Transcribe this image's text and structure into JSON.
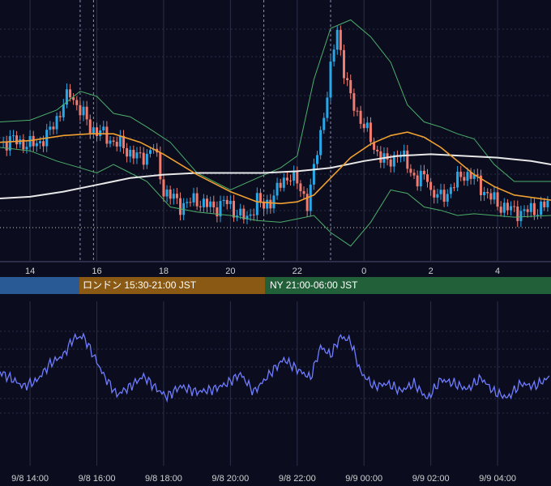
{
  "colors": {
    "background": "#0b0d1f",
    "candle_up": "#29a8e8",
    "candle_down": "#f07b6e",
    "bollinger": "#4caf6a",
    "ma_short": "#f0a030",
    "ma_long": "#e8e8e8",
    "oscillator": "#6f7cff",
    "grid": "#2a2f48",
    "axis_text": "#d0d0d0"
  },
  "sessions": {
    "tokyo": {
      "label": "",
      "color": "#2a5a96"
    },
    "london": {
      "label": "ロンドン 15:30-21:00 JST",
      "color": "#8a5a14"
    },
    "ny": {
      "label": "NY 21:00-06:00 JST",
      "color": "#22603a"
    }
  },
  "chart_data": [
    {
      "type": "candlestick",
      "title": "",
      "x_tick_labels": [
        "14",
        "16",
        "18",
        "20",
        "22",
        "0",
        "2",
        "4"
      ],
      "y_tick_labels": [],
      "grid": true,
      "overlays": [
        "bollinger_bands",
        "moving_average_short",
        "moving_average_long"
      ],
      "price_path": [
        [
          13.1,
          0.33
        ],
        [
          13.6,
          0.34
        ],
        [
          14.0,
          0.31
        ],
        [
          14.5,
          0.36
        ],
        [
          15.0,
          0.55
        ],
        [
          15.2,
          0.62
        ],
        [
          15.5,
          0.52
        ],
        [
          15.8,
          0.42
        ],
        [
          16.3,
          0.36
        ],
        [
          16.8,
          0.3
        ],
        [
          17.3,
          0.23
        ],
        [
          17.7,
          0.3
        ],
        [
          18.0,
          0.05
        ],
        [
          18.5,
          -0.04
        ],
        [
          19.0,
          -0.01
        ],
        [
          19.5,
          -0.06
        ],
        [
          19.8,
          -0.02
        ],
        [
          20.2,
          -0.08
        ],
        [
          20.5,
          -0.13
        ],
        [
          20.8,
          0.0
        ],
        [
          21.0,
          -0.06
        ],
        [
          21.4,
          0.05
        ],
        [
          21.8,
          0.15
        ],
        [
          22.0,
          0.08
        ],
        [
          22.3,
          -0.02
        ],
        [
          22.5,
          0.16
        ],
        [
          22.8,
          0.5
        ],
        [
          23.0,
          0.75
        ],
        [
          23.2,
          1.0
        ],
        [
          23.35,
          0.8
        ],
        [
          23.6,
          0.58
        ],
        [
          24.0,
          0.43
        ],
        [
          24.3,
          0.3
        ],
        [
          24.7,
          0.2
        ],
        [
          25.0,
          0.27
        ],
        [
          25.3,
          0.2
        ],
        [
          25.6,
          0.1
        ],
        [
          25.9,
          0.14
        ],
        [
          26.0,
          0.04
        ],
        [
          26.3,
          0.0
        ],
        [
          26.6,
          0.06
        ],
        [
          27.0,
          0.15
        ],
        [
          27.3,
          0.12
        ],
        [
          27.7,
          0.02
        ],
        [
          28.0,
          -0.03
        ],
        [
          28.4,
          -0.07
        ],
        [
          28.8,
          -0.08
        ],
        [
          29.2,
          -0.06
        ],
        [
          29.6,
          -0.03
        ]
      ],
      "bollinger_upper": [
        [
          13.1,
          0.45
        ],
        [
          14.0,
          0.46
        ],
        [
          14.8,
          0.52
        ],
        [
          15.5,
          0.63
        ],
        [
          16.0,
          0.6
        ],
        [
          16.5,
          0.5
        ],
        [
          17.0,
          0.48
        ],
        [
          17.5,
          0.42
        ],
        [
          18.2,
          0.33
        ],
        [
          19.0,
          0.15
        ],
        [
          20.0,
          0.05
        ],
        [
          20.8,
          0.12
        ],
        [
          21.5,
          0.18
        ],
        [
          22.0,
          0.25
        ],
        [
          22.5,
          0.7
        ],
        [
          23.0,
          1.0
        ],
        [
          23.6,
          1.05
        ],
        [
          24.2,
          0.95
        ],
        [
          24.8,
          0.8
        ],
        [
          25.3,
          0.55
        ],
        [
          25.8,
          0.45
        ],
        [
          26.3,
          0.42
        ],
        [
          26.8,
          0.38
        ],
        [
          27.3,
          0.35
        ],
        [
          27.9,
          0.2
        ],
        [
          28.5,
          0.1
        ],
        [
          29.6,
          0.1
        ]
      ],
      "bollinger_lower": [
        [
          13.1,
          0.3
        ],
        [
          14.0,
          0.28
        ],
        [
          14.8,
          0.22
        ],
        [
          15.5,
          0.18
        ],
        [
          16.0,
          0.15
        ],
        [
          16.5,
          0.2
        ],
        [
          17.0,
          0.15
        ],
        [
          17.5,
          0.1
        ],
        [
          18.2,
          -0.05
        ],
        [
          19.0,
          -0.08
        ],
        [
          20.0,
          -0.1
        ],
        [
          20.8,
          -0.13
        ],
        [
          21.5,
          -0.14
        ],
        [
          22.0,
          -0.12
        ],
        [
          22.5,
          -0.1
        ],
        [
          23.0,
          -0.2
        ],
        [
          23.6,
          -0.28
        ],
        [
          24.2,
          -0.14
        ],
        [
          24.8,
          0.05
        ],
        [
          25.3,
          0.03
        ],
        [
          25.8,
          -0.05
        ],
        [
          26.3,
          -0.07
        ],
        [
          26.8,
          -0.1
        ],
        [
          27.3,
          -0.09
        ],
        [
          27.9,
          -0.1
        ],
        [
          28.5,
          -0.11
        ],
        [
          29.6,
          -0.1
        ]
      ],
      "ma_short": [
        [
          13.1,
          0.33
        ],
        [
          14.0,
          0.34
        ],
        [
          15.0,
          0.37
        ],
        [
          15.8,
          0.38
        ],
        [
          16.5,
          0.38
        ],
        [
          17.3,
          0.33
        ],
        [
          18.0,
          0.26
        ],
        [
          19.0,
          0.14
        ],
        [
          20.0,
          0.04
        ],
        [
          20.8,
          -0.02
        ],
        [
          21.5,
          -0.03
        ],
        [
          22.0,
          -0.02
        ],
        [
          22.5,
          0.02
        ],
        [
          23.0,
          0.12
        ],
        [
          23.6,
          0.24
        ],
        [
          24.2,
          0.32
        ],
        [
          24.8,
          0.37
        ],
        [
          25.3,
          0.39
        ],
        [
          25.8,
          0.36
        ],
        [
          26.3,
          0.3
        ],
        [
          26.8,
          0.22
        ],
        [
          27.3,
          0.14
        ],
        [
          27.9,
          0.07
        ],
        [
          28.5,
          0.02
        ],
        [
          29.6,
          -0.01
        ]
      ],
      "ma_long": [
        [
          13.1,
          0.0
        ],
        [
          14.0,
          0.01
        ],
        [
          15.0,
          0.04
        ],
        [
          16.0,
          0.08
        ],
        [
          17.0,
          0.12
        ],
        [
          18.0,
          0.14
        ],
        [
          19.0,
          0.15
        ],
        [
          20.0,
          0.15
        ],
        [
          21.0,
          0.15
        ],
        [
          22.0,
          0.16
        ],
        [
          23.0,
          0.18
        ],
        [
          24.0,
          0.22
        ],
        [
          25.0,
          0.25
        ],
        [
          26.0,
          0.26
        ],
        [
          27.0,
          0.25
        ],
        [
          28.0,
          0.24
        ],
        [
          29.0,
          0.22
        ],
        [
          29.6,
          0.2
        ]
      ]
    },
    {
      "type": "line",
      "title": "",
      "x_tick_labels": [
        "9/8 14:00",
        "9/8 16:00",
        "9/8 18:00",
        "9/8 20:00",
        "9/8 22:00",
        "9/9 00:00",
        "9/9 02:00",
        "9/9 04:00"
      ],
      "y_tick_labels": [],
      "grid": true,
      "series": [
        {
          "name": "",
          "points": [
            [
              13.1,
              0.15
            ],
            [
              13.4,
              0.05
            ],
            [
              13.8,
              -0.1
            ],
            [
              14.2,
              0.0
            ],
            [
              14.6,
              0.3
            ],
            [
              15.0,
              0.45
            ],
            [
              15.3,
              0.75
            ],
            [
              15.6,
              0.78
            ],
            [
              15.9,
              0.45
            ],
            [
              16.2,
              0.1
            ],
            [
              16.6,
              -0.25
            ],
            [
              17.0,
              -0.1
            ],
            [
              17.4,
              0.08
            ],
            [
              17.8,
              -0.15
            ],
            [
              18.1,
              -0.28
            ],
            [
              18.5,
              -0.1
            ],
            [
              19.0,
              -0.2
            ],
            [
              19.5,
              -0.15
            ],
            [
              19.9,
              -0.05
            ],
            [
              20.3,
              0.12
            ],
            [
              20.7,
              -0.2
            ],
            [
              21.0,
              0.0
            ],
            [
              21.3,
              0.2
            ],
            [
              21.6,
              0.38
            ],
            [
              22.0,
              0.2
            ],
            [
              22.4,
              0.05
            ],
            [
              22.7,
              0.6
            ],
            [
              23.0,
              0.45
            ],
            [
              23.3,
              0.78
            ],
            [
              23.6,
              0.7
            ],
            [
              23.9,
              0.15
            ],
            [
              24.3,
              -0.1
            ],
            [
              24.7,
              -0.05
            ],
            [
              25.1,
              -0.18
            ],
            [
              25.5,
              -0.05
            ],
            [
              25.9,
              -0.32
            ],
            [
              26.3,
              0.02
            ],
            [
              26.7,
              -0.05
            ],
            [
              27.1,
              -0.15
            ],
            [
              27.5,
              0.05
            ],
            [
              27.9,
              -0.2
            ],
            [
              28.3,
              -0.3
            ],
            [
              28.7,
              -0.05
            ],
            [
              29.1,
              -0.1
            ],
            [
              29.6,
              0.08
            ]
          ]
        }
      ]
    }
  ]
}
